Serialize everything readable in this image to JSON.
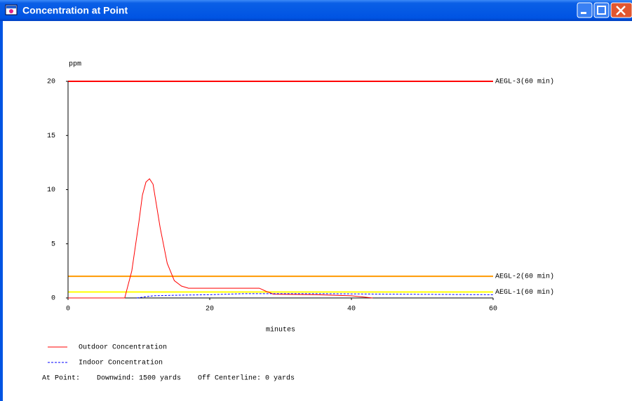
{
  "window": {
    "title": "Concentration at Point"
  },
  "chart_data": {
    "type": "line",
    "y_label": "ppm",
    "x_label": "minutes",
    "xlim": [
      0,
      60
    ],
    "xticks": [
      0,
      20,
      40,
      60
    ],
    "ylim": [
      0,
      20
    ],
    "yticks": [
      0,
      5,
      10,
      15,
      20
    ],
    "series": [
      {
        "name": "Outdoor Concentration",
        "color": "#ff0000",
        "dash": false,
        "x": [
          0,
          8,
          9,
          10,
          10.5,
          11,
          11.5,
          12,
          13,
          14,
          15,
          16,
          17,
          27,
          28,
          29,
          35,
          40,
          43
        ],
        "values": [
          0,
          0,
          2.5,
          7,
          9.5,
          10.7,
          11,
          10.5,
          6.5,
          3.2,
          1.6,
          1.1,
          0.9,
          0.9,
          0.6,
          0.35,
          0.3,
          0.2,
          0
        ]
      },
      {
        "name": "Indoor Concentration",
        "color": "#0000ff",
        "dash": true,
        "x": [
          9.7,
          12,
          15,
          20,
          25,
          35,
          45,
          60
        ],
        "values": [
          0,
          0.2,
          0.25,
          0.3,
          0.4,
          0.4,
          0.35,
          0.3
        ]
      }
    ],
    "reference_lines": [
      {
        "label": "AEGL-3(60 min)",
        "value": 20,
        "color": "#ff0000"
      },
      {
        "label": "AEGL-2(60 min)",
        "value": 2,
        "color": "#ff9900"
      },
      {
        "label": "AEGL-1(60 min)",
        "value": 0.55,
        "color": "#ffff00"
      }
    ],
    "footer": "At Point:    Downwind: 1500 yards    Off Centerline: 0 yards"
  }
}
